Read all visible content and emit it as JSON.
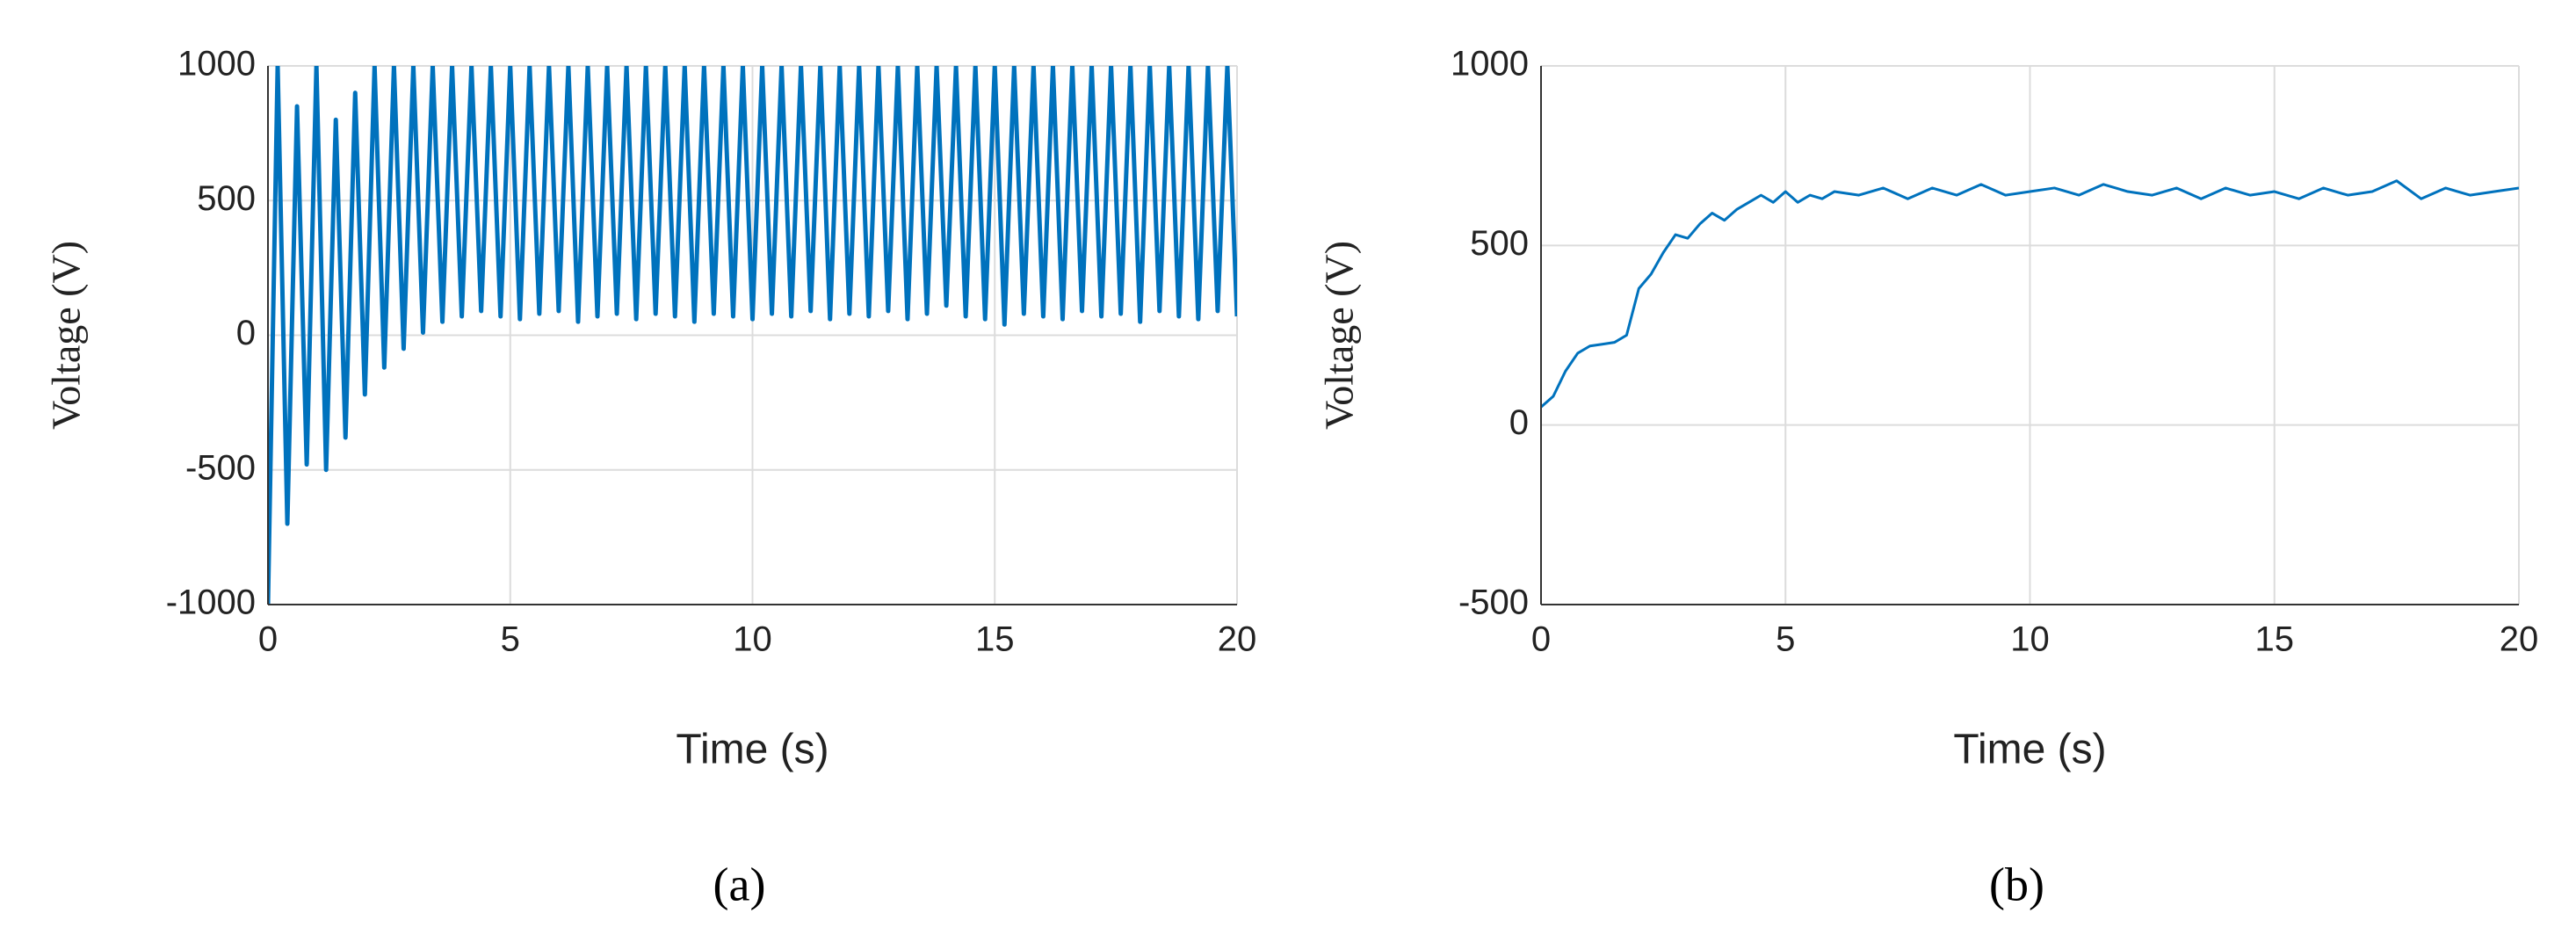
{
  "chart_data": [
    {
      "type": "line",
      "caption": "(a)",
      "xlabel": "Time  (s)",
      "ylabel": "Voltage (V)",
      "xlim": [
        0,
        20
      ],
      "ylim": [
        -1000,
        1000
      ],
      "xticks": [
        0,
        5,
        10,
        15,
        20
      ],
      "yticks": [
        -1000,
        -500,
        0,
        500,
        1000
      ],
      "grid": true,
      "series": [
        {
          "color": "#0072bd",
          "x": [
            0,
            0.2,
            0.4,
            0.6,
            0.8,
            1,
            1.2,
            1.4,
            1.6,
            1.8,
            2,
            2.2,
            2.4,
            2.6,
            2.8,
            3,
            3.2,
            3.4,
            3.6,
            3.8,
            4,
            4.2,
            4.4,
            4.6,
            4.8,
            5,
            5.2,
            5.4,
            5.6,
            5.8,
            6,
            6.2,
            6.4,
            6.6,
            6.8,
            7,
            7.2,
            7.4,
            7.6,
            7.8,
            8,
            8.2,
            8.4,
            8.6,
            8.8,
            9,
            9.2,
            9.4,
            9.6,
            9.8,
            10,
            10.2,
            10.4,
            10.6,
            10.8,
            11,
            11.2,
            11.4,
            11.6,
            11.8,
            12,
            12.2,
            12.4,
            12.6,
            12.8,
            13,
            13.2,
            13.4,
            13.6,
            13.8,
            14,
            14.2,
            14.4,
            14.6,
            14.8,
            15,
            15.2,
            15.4,
            15.6,
            15.8,
            16,
            16.2,
            16.4,
            16.6,
            16.8,
            17,
            17.2,
            17.4,
            17.6,
            17.8,
            18,
            18.2,
            18.4,
            18.6,
            18.8,
            19,
            19.2,
            19.4,
            19.6,
            19.8,
            20
          ],
          "values": [
            -1000,
            1000,
            -700,
            850,
            -480,
            1000,
            -500,
            800,
            -380,
            900,
            -220,
            1000,
            -120,
            1000,
            -50,
            1000,
            10,
            1000,
            50,
            1000,
            70,
            1000,
            90,
            1000,
            70,
            1000,
            60,
            1000,
            80,
            1000,
            90,
            1000,
            50,
            1000,
            70,
            1000,
            80,
            1000,
            60,
            1000,
            80,
            1000,
            70,
            1000,
            50,
            1000,
            80,
            1000,
            70,
            1000,
            60,
            1000,
            80,
            1000,
            70,
            1000,
            90,
            1000,
            60,
            1000,
            80,
            1000,
            70,
            1000,
            90,
            1000,
            60,
            1000,
            80,
            1000,
            110,
            1000,
            70,
            1000,
            60,
            1000,
            40,
            1000,
            80,
            1000,
            70,
            1000,
            60,
            1000,
            90,
            1000,
            70,
            1000,
            80,
            1000,
            50,
            1000,
            90,
            1000,
            70,
            1000,
            60,
            1000,
            90,
            1000,
            70
          ]
        }
      ]
    },
    {
      "type": "line",
      "caption": "(b)",
      "xlabel": "Time  (s)",
      "ylabel": "Voltage (V)",
      "xlim": [
        0,
        20
      ],
      "ylim": [
        -500,
        1000
      ],
      "xticks": [
        0,
        5,
        10,
        15,
        20
      ],
      "yticks": [
        -500,
        0,
        500,
        1000
      ],
      "grid": true,
      "series": [
        {
          "color": "#0072bd",
          "x": [
            0,
            0.25,
            0.5,
            0.75,
            1,
            1.25,
            1.5,
            1.75,
            2,
            2.25,
            2.5,
            2.75,
            3,
            3.25,
            3.5,
            3.75,
            4,
            4.25,
            4.5,
            4.75,
            5,
            5.25,
            5.5,
            5.75,
            6,
            6.5,
            7,
            7.5,
            8,
            8.5,
            9,
            9.5,
            10,
            10.5,
            11,
            11.5,
            12,
            12.5,
            13,
            13.5,
            14,
            14.5,
            15,
            15.5,
            16,
            16.5,
            17,
            17.5,
            18,
            18.5,
            19,
            19.5,
            20
          ],
          "values": [
            50,
            80,
            150,
            200,
            220,
            225,
            230,
            250,
            380,
            420,
            480,
            530,
            520,
            560,
            590,
            570,
            600,
            620,
            640,
            620,
            650,
            620,
            640,
            630,
            650,
            640,
            660,
            630,
            660,
            640,
            670,
            640,
            650,
            660,
            640,
            670,
            650,
            640,
            660,
            630,
            660,
            640,
            650,
            630,
            660,
            640,
            650,
            680,
            630,
            660,
            640,
            650,
            660
          ]
        }
      ]
    }
  ]
}
